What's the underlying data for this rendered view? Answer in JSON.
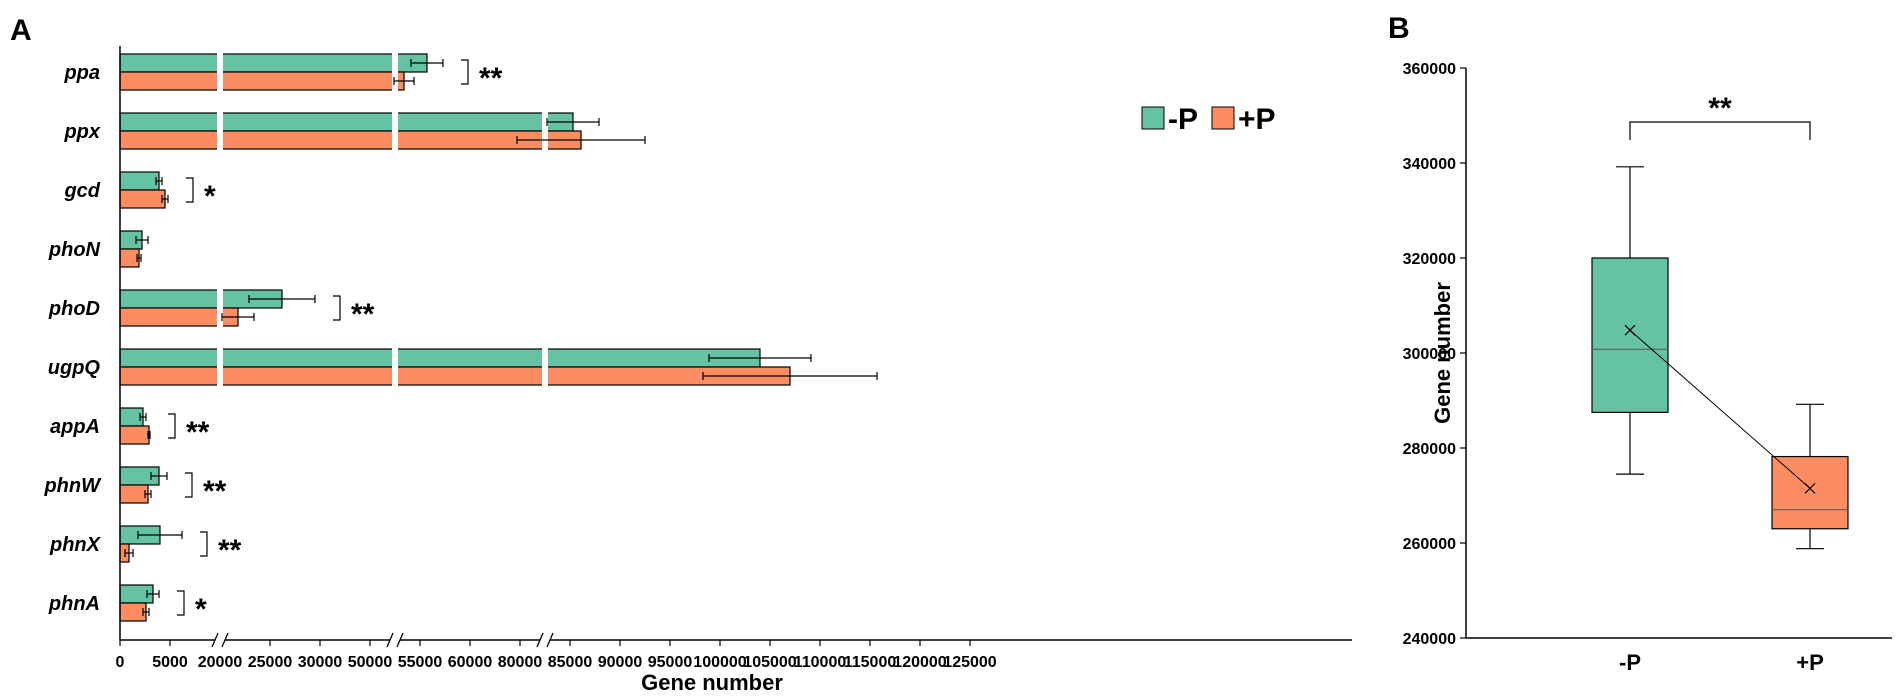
{
  "panel_labels": {
    "a": "A",
    "b": "B"
  },
  "colors": {
    "minus_p": "#66c2a5",
    "plus_p": "#fc8d62",
    "axis": "#000000"
  },
  "legend": {
    "minus_label": "-P",
    "plus_label": "+P"
  },
  "chart_data": [
    {
      "type": "bar",
      "orientation": "horizontal",
      "title": "",
      "xlabel": "Gene number",
      "ylabel": "",
      "xlim": [
        0,
        125000
      ],
      "xticks": [
        0,
        5000,
        20000,
        25000,
        30000,
        50000,
        55000,
        60000,
        80000,
        85000,
        90000,
        95000,
        100000,
        105000,
        110000,
        115000,
        120000,
        125000
      ],
      "x_tick_labels": [
        "0",
        "5000",
        "20000",
        "25000",
        "30000",
        "50000",
        "55000",
        "60000",
        "80000",
        "85000",
        "90000",
        "95000",
        "100000",
        "105000",
        "110000",
        "115000",
        "120000",
        "125000"
      ],
      "axis_breaks_after": [
        7500,
        32500,
        62500
      ],
      "legend_position": "top-right",
      "categories": [
        "ppa",
        "ppx",
        "gcd",
        "phoN",
        "phoD",
        "ugpQ",
        "appA",
        "phnW",
        "phnX",
        "phnA"
      ],
      "series": [
        {
          "name": "-P",
          "values": [
            55700,
            85300,
            3900,
            2200,
            26200,
            104000,
            2300,
            3900,
            4000,
            3300
          ],
          "errors": [
            1600,
            2600,
            300,
            600,
            3300,
            5100,
            300,
            800,
            2200,
            600
          ]
        },
        {
          "name": "+P",
          "values": [
            53400,
            86100,
            4500,
            1900,
            21800,
            107000,
            2900,
            2800,
            900,
            2600
          ],
          "errors": [
            1000,
            6400,
            300,
            200,
            1600,
            8700,
            100,
            300,
            400,
            300
          ]
        }
      ],
      "significance": [
        "**",
        "",
        "*",
        "",
        "**",
        "",
        "**",
        "**",
        "**",
        "*"
      ]
    },
    {
      "type": "box",
      "title": "",
      "xlabel": "",
      "ylabel": "Gene number",
      "ylim": [
        240000,
        360000
      ],
      "yticks": [
        240000,
        260000,
        280000,
        300000,
        320000,
        340000,
        360000
      ],
      "y_tick_labels": [
        "240000",
        "260000",
        "280000",
        "300000",
        "320000",
        "340000",
        "360000"
      ],
      "categories": [
        "-P",
        "+P"
      ],
      "boxes": [
        {
          "name": "-P",
          "min": 274500,
          "q1": 287500,
          "median": 300800,
          "q3": 320000,
          "max": 339200,
          "mean": 304800
        },
        {
          "name": "+P",
          "min": 258800,
          "q1": 263000,
          "median": 267000,
          "q3": 278200,
          "max": 289200,
          "mean": 271500
        }
      ],
      "significance": "**"
    }
  ]
}
